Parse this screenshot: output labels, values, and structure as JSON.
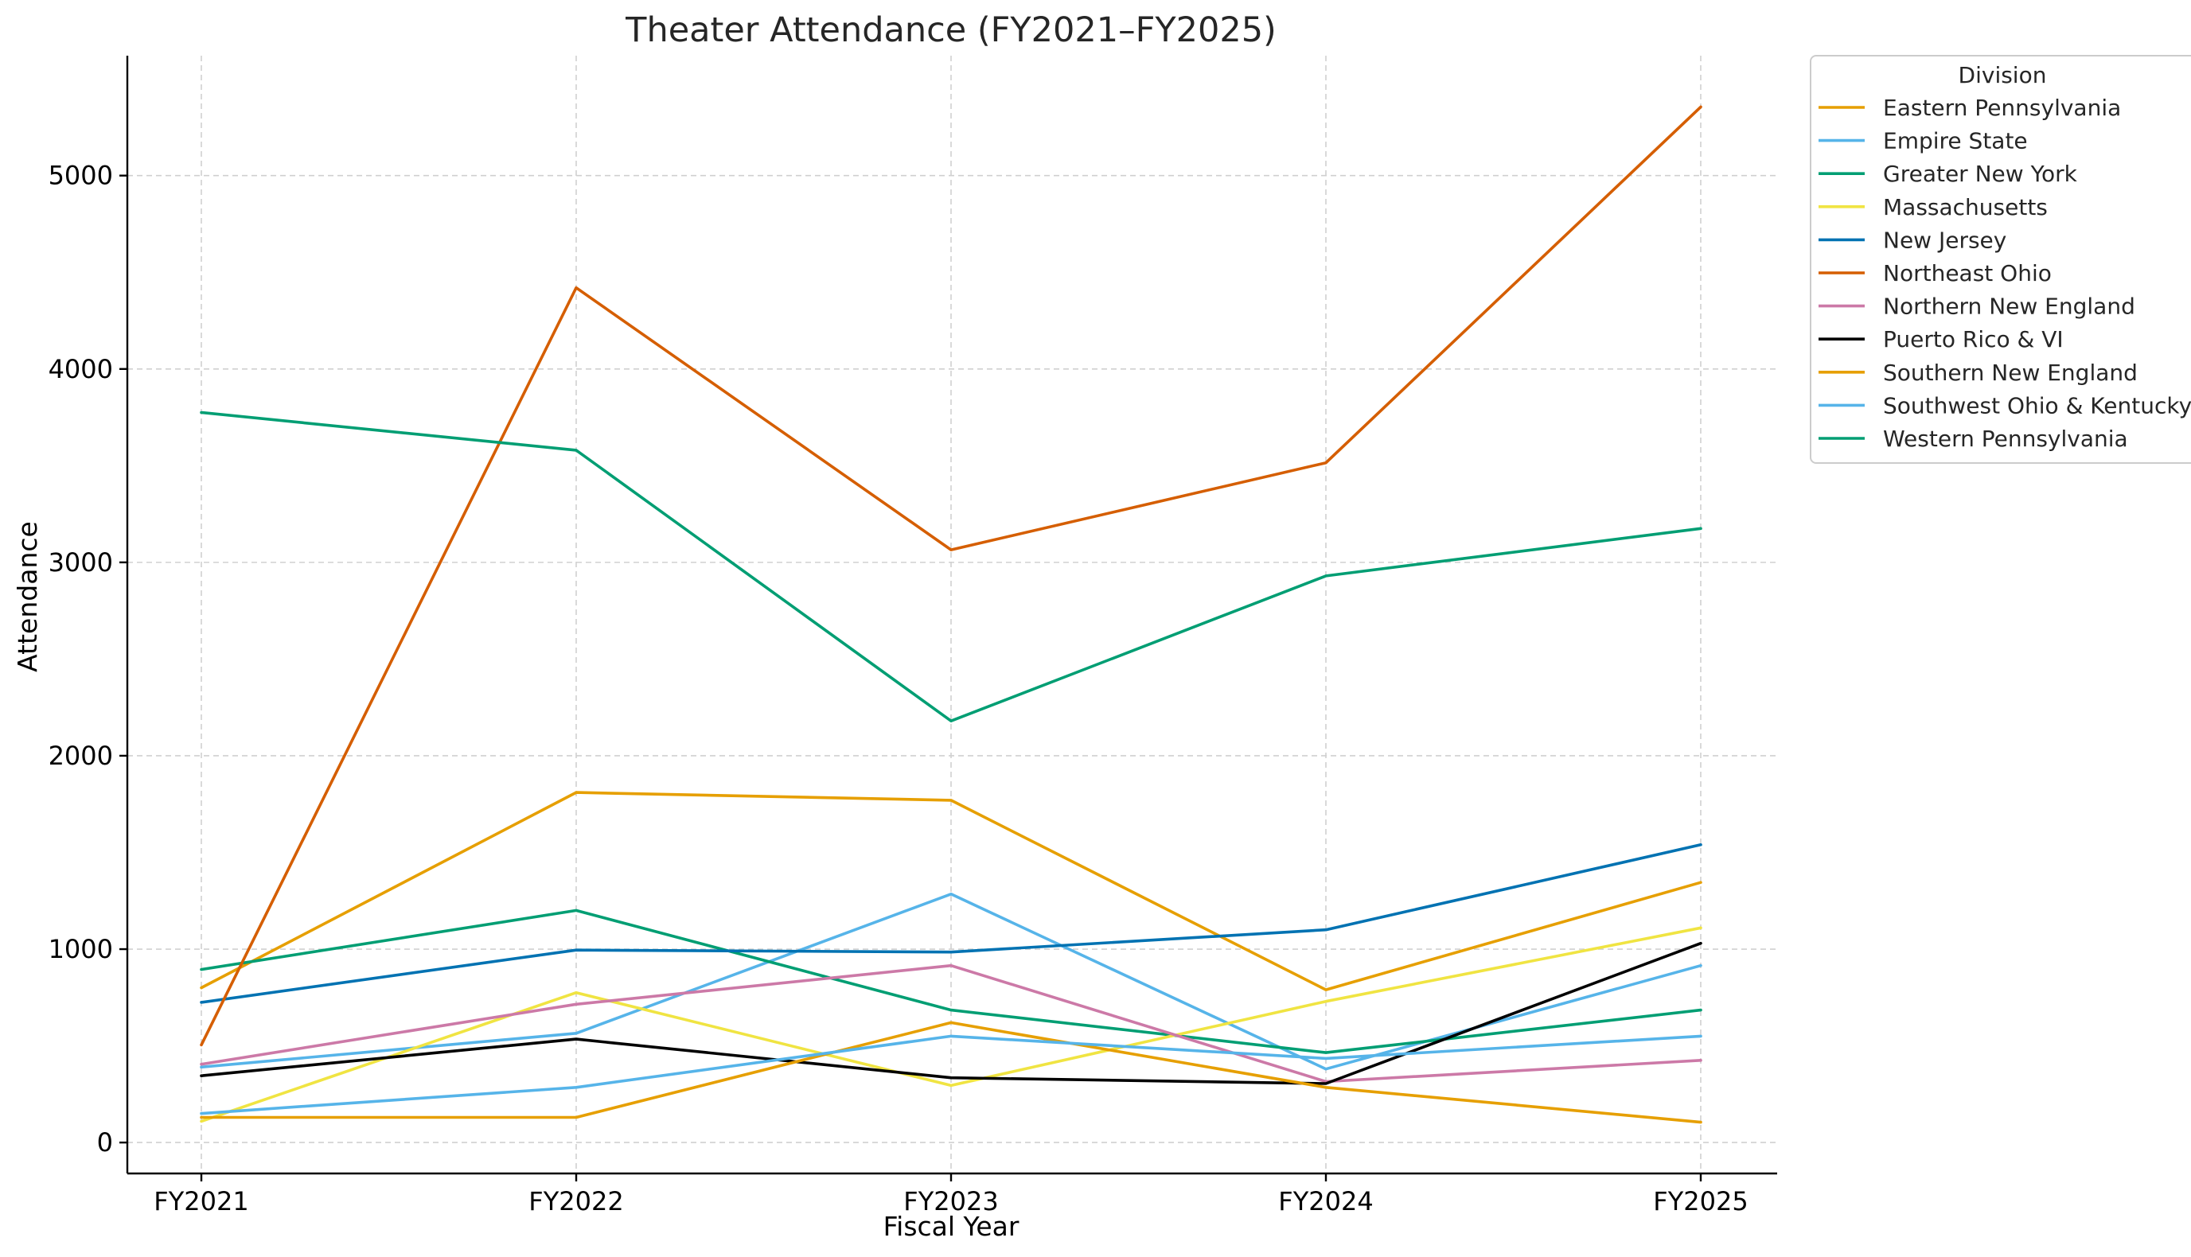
{
  "chart_data": {
    "type": "line",
    "title": "Theater Attendance (FY2021–FY2025)",
    "xlabel": "Fiscal Year",
    "ylabel": "Attendance",
    "categories": [
      "FY2021",
      "FY2022",
      "FY2023",
      "FY2024",
      "FY2025"
    ],
    "ylim": [
      -160,
      5620
    ],
    "yticks": [
      0,
      1000,
      2000,
      3000,
      4000,
      5000
    ],
    "grid": true,
    "legend": {
      "title": "Division",
      "placement": "outside-top-right"
    },
    "series": [
      {
        "name": "Eastern Pennsylvania",
        "color": "#E69F00",
        "values": [
          800,
          1810,
          1770,
          790,
          1345
        ]
      },
      {
        "name": "Empire State",
        "color": "#56B4E9",
        "values": [
          390,
          565,
          1285,
          380,
          915
        ]
      },
      {
        "name": "Greater New York",
        "color": "#009E73",
        "values": [
          895,
          1200,
          685,
          465,
          685
        ]
      },
      {
        "name": "Massachusetts",
        "color": "#F0E442",
        "values": [
          110,
          775,
          295,
          730,
          1110
        ]
      },
      {
        "name": "New Jersey",
        "color": "#0072B2",
        "values": [
          725,
          995,
          985,
          1100,
          1540
        ]
      },
      {
        "name": "Northeast Ohio",
        "color": "#D55E00",
        "values": [
          505,
          4420,
          3065,
          3515,
          5355
        ]
      },
      {
        "name": "Northern New England",
        "color": "#CC79A7",
        "values": [
          405,
          715,
          915,
          315,
          425
        ]
      },
      {
        "name": "Puerto Rico & VI",
        "color": "#000000",
        "values": [
          345,
          535,
          335,
          305,
          1030
        ]
      },
      {
        "name": "Southern New England",
        "color": "#E69F00",
        "values": [
          130,
          130,
          620,
          285,
          105
        ]
      },
      {
        "name": "Southwest Ohio & Kentucky",
        "color": "#56B4E9",
        "values": [
          150,
          285,
          550,
          435,
          550
        ]
      },
      {
        "name": "Western Pennsylvania",
        "color": "#009E73",
        "values": [
          3775,
          3580,
          2180,
          2930,
          3175
        ]
      }
    ]
  }
}
